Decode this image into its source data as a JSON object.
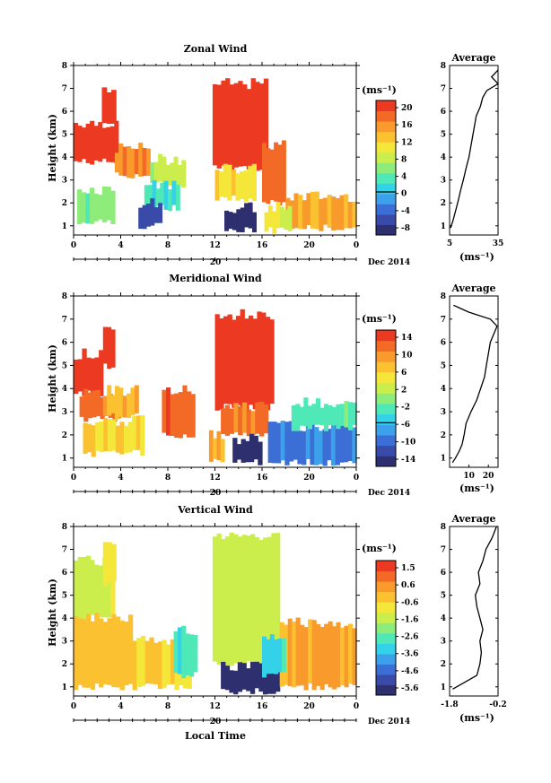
{
  "colors": {
    "palette": [
      "#2d2f6e",
      "#3a4aa8",
      "#3c6fd6",
      "#3da0ea",
      "#34d2e8",
      "#4fe8b7",
      "#8eec7a",
      "#cbee4d",
      "#f4e73a",
      "#fbc131",
      "#f89a2c",
      "#f26a26",
      "#ec3a22"
    ]
  },
  "shared": {
    "date_label": "20",
    "month_label": "Dec 2014",
    "xlabel": "Local Time",
    "ylabel": "Height (km)",
    "unit_label": "(ms⁻¹)",
    "average_title": "Average",
    "x_ticks": [
      "0",
      "4",
      "8",
      "12",
      "16",
      "20",
      "0"
    ],
    "y_ticks": [
      "1",
      "2",
      "3",
      "4",
      "5",
      "6",
      "7",
      "8"
    ]
  },
  "chart_data": [
    {
      "type": "heatmap",
      "title": "Zonal Wind",
      "xlim": [
        0,
        24
      ],
      "ylim": [
        0.6,
        8
      ],
      "colorbar_ticks": [
        "20",
        "16",
        "12",
        "8",
        "4",
        "0",
        "-4",
        "-8"
      ],
      "colorbar_range": [
        -10,
        22
      ],
      "regions": [
        {
          "x": [
            0,
            3.8
          ],
          "y": [
            3.8,
            5.5
          ],
          "v": 21
        },
        {
          "x": [
            2.4,
            3.6
          ],
          "y": [
            5.5,
            6.8
          ],
          "v": 21
        },
        {
          "x": [
            3.5,
            6.5
          ],
          "y": [
            3.2,
            4.4
          ],
          "v": 17
        },
        {
          "x": [
            6.5,
            9.5
          ],
          "y": [
            2.8,
            3.9
          ],
          "v": 8
        },
        {
          "x": [
            6,
            9
          ],
          "y": [
            1.8,
            2.8
          ],
          "v": 3
        },
        {
          "x": [
            0.3,
            3.5
          ],
          "y": [
            1.2,
            2.6
          ],
          "v": 6
        },
        {
          "x": [
            5.5,
            7.5
          ],
          "y": [
            1.0,
            2.0
          ],
          "v": -6
        },
        {
          "x": [
            11.8,
            16.5
          ],
          "y": [
            3.5,
            7.2
          ],
          "v": 21
        },
        {
          "x": [
            12,
            15.5
          ],
          "y": [
            2.2,
            3.5
          ],
          "v": 12
        },
        {
          "x": [
            12.8,
            15.5
          ],
          "y": [
            0.8,
            1.8
          ],
          "v": -9
        },
        {
          "x": [
            16,
            18
          ],
          "y": [
            2.0,
            4.5
          ],
          "v": 18
        },
        {
          "x": [
            18,
            24
          ],
          "y": [
            0.9,
            2.3
          ],
          "v": 15
        },
        {
          "x": [
            16.2,
            18.5
          ],
          "y": [
            0.8,
            1.8
          ],
          "v": 10
        }
      ],
      "contour_zero": true,
      "average": {
        "xlim": [
          5,
          35
        ],
        "x_ticks": [
          "5",
          "35"
        ],
        "height": [
          0.9,
          1.2,
          1.6,
          2.0,
          2.6,
          3.0,
          3.6,
          4.0,
          4.6,
          5.0,
          5.4,
          5.8,
          6.2,
          6.6,
          6.9,
          7.2,
          7.5,
          7.8
        ],
        "value": [
          5.5,
          7.0,
          8.5,
          10.0,
          12.0,
          13.5,
          15.5,
          17.0,
          18.5,
          19.5,
          20.5,
          21.5,
          24.0,
          25.5,
          28.0,
          35.0,
          31.0,
          35.0
        ]
      }
    },
    {
      "type": "heatmap",
      "title": "Meridional Wind",
      "xlim": [
        0,
        24
      ],
      "ylim": [
        0.6,
        8
      ],
      "colorbar_ticks": [
        "14",
        "10",
        "6",
        "2",
        "-2",
        "-6",
        "-10",
        "-14"
      ],
      "colorbar_range": [
        -16,
        16
      ],
      "regions": [
        {
          "x": [
            0,
            2.5
          ],
          "y": [
            3.8,
            5.5
          ],
          "v": 15
        },
        {
          "x": [
            2.5,
            3.5
          ],
          "y": [
            5.0,
            6.7
          ],
          "v": 15
        },
        {
          "x": [
            0.5,
            4.0
          ],
          "y": [
            2.7,
            3.8
          ],
          "v": 12
        },
        {
          "x": [
            2.5,
            5.5
          ],
          "y": [
            2.8,
            3.9
          ],
          "v": 8
        },
        {
          "x": [
            0.8,
            6.0
          ],
          "y": [
            1.2,
            2.6
          ],
          "v": 6
        },
        {
          "x": [
            7.5,
            10.3
          ],
          "y": [
            2.0,
            4.0
          ],
          "v": 13
        },
        {
          "x": [
            12,
            17
          ],
          "y": [
            3.2,
            7.2
          ],
          "v": 15
        },
        {
          "x": [
            12.5,
            16.5
          ],
          "y": [
            2.0,
            3.2
          ],
          "v": 12
        },
        {
          "x": [
            13.5,
            16
          ],
          "y": [
            0.8,
            1.8
          ],
          "v": -15
        },
        {
          "x": [
            16.5,
            24
          ],
          "y": [
            0.8,
            2.4
          ],
          "v": -9
        },
        {
          "x": [
            18.5,
            24
          ],
          "y": [
            2.3,
            3.4
          ],
          "v": -2
        },
        {
          "x": [
            11.5,
            12.8
          ],
          "y": [
            0.9,
            2.0
          ],
          "v": 8
        }
      ],
      "contour_zero": true,
      "average": {
        "xlim": [
          0,
          25
        ],
        "x_ticks": [
          "10",
          "20"
        ],
        "height": [
          0.8,
          1.0,
          1.3,
          1.6,
          2.0,
          2.5,
          3.0,
          3.5,
          4.0,
          4.5,
          5.0,
          5.5,
          6.0,
          6.3,
          6.7,
          7.0,
          7.3,
          7.6
        ],
        "value": [
          1.5,
          3.0,
          5.0,
          6.5,
          7.5,
          8.5,
          11.0,
          14.0,
          16.0,
          18.0,
          19.0,
          20.0,
          21.0,
          22.5,
          24.5,
          21.0,
          10.0,
          2.0
        ]
      }
    },
    {
      "type": "heatmap",
      "title": "Vertical Wind",
      "xlim": [
        0,
        24
      ],
      "ylim": [
        0.6,
        8
      ],
      "colorbar_ticks": [
        "1.5",
        "0.6",
        "-0.6",
        "-1.6",
        "-2.6",
        "-3.6",
        "-4.6",
        "-5.6"
      ],
      "colorbar_range": [
        -6.2,
        2.0
      ],
      "regions": [
        {
          "x": [
            0,
            3.5
          ],
          "y": [
            4.0,
            6.5
          ],
          "v": -1.4
        },
        {
          "x": [
            2.5,
            3.6
          ],
          "y": [
            5.5,
            7.2
          ],
          "v": -1.2
        },
        {
          "x": [
            0,
            5
          ],
          "y": [
            1.0,
            4.0
          ],
          "v": -0.2
        },
        {
          "x": [
            5,
            10
          ],
          "y": [
            1.0,
            3.0
          ],
          "v": -0.4
        },
        {
          "x": [
            8.5,
            10.5
          ],
          "y": [
            1.5,
            3.5
          ],
          "v": -2.8
        },
        {
          "x": [
            11.8,
            17.5
          ],
          "y": [
            2.0,
            7.6
          ],
          "v": -1.4
        },
        {
          "x": [
            12.5,
            17.5
          ],
          "y": [
            0.8,
            1.9
          ],
          "v": -6.0
        },
        {
          "x": [
            17.5,
            24
          ],
          "y": [
            1.0,
            3.8
          ],
          "v": 0.2
        },
        {
          "x": [
            16,
            18
          ],
          "y": [
            1.5,
            3.2
          ],
          "v": -3.2
        }
      ],
      "contour_zero": false,
      "average": {
        "xlim": [
          -1.8,
          -0.2
        ],
        "x_ticks": [
          "-1.8",
          "-0.2"
        ],
        "height": [
          0.9,
          1.2,
          1.5,
          2.0,
          2.5,
          3.0,
          3.5,
          4.0,
          4.5,
          5.0,
          5.5,
          6.0,
          6.5,
          7.0,
          7.5,
          8.0
        ],
        "value": [
          -1.7,
          -1.3,
          -0.9,
          -0.8,
          -0.75,
          -0.8,
          -0.7,
          -0.8,
          -0.9,
          -0.95,
          -0.8,
          -0.85,
          -0.7,
          -0.6,
          -0.4,
          -0.25
        ]
      }
    }
  ]
}
